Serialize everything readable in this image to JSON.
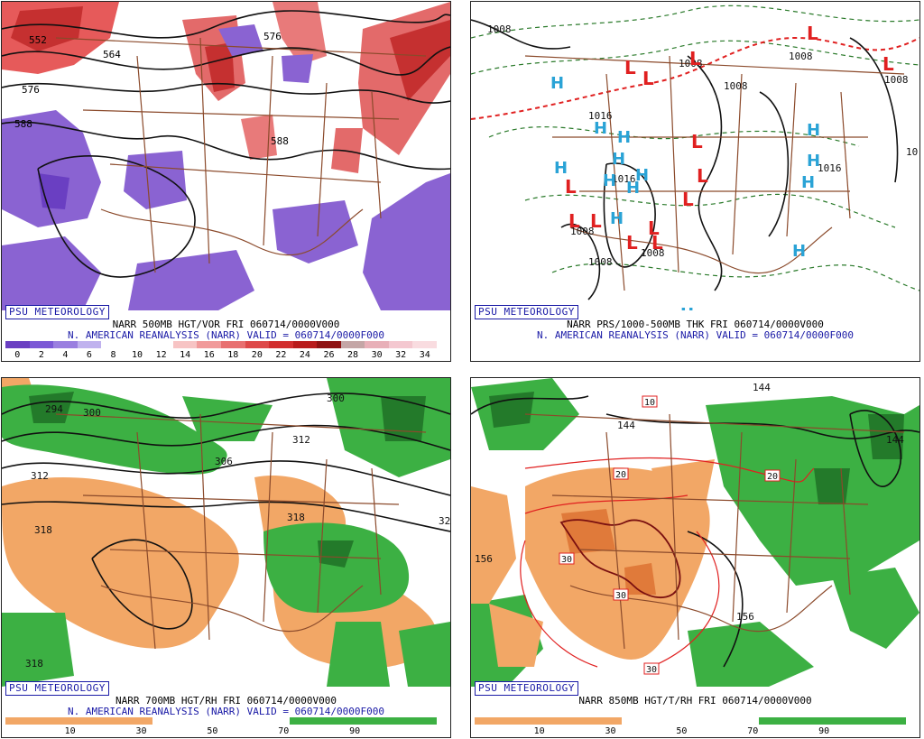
{
  "brand": "PSU METEOROLOGY",
  "panels": [
    {
      "caption": "NARR 500MB HGT/VOR FRI 060714/0000V000",
      "subcaption": "N. AMERICAN REANALYSIS (NARR) VALID = 060714/0000F000",
      "colorbar_ticks": [
        "0",
        "2",
        "4",
        "6",
        "8",
        "10",
        "12",
        "14",
        "16",
        "18",
        "20",
        "22",
        "24",
        "26",
        "28",
        "30",
        "32",
        "34"
      ],
      "colorbar_colors": [
        "#6a3fc2",
        "#7c59d6",
        "#9a7fe0",
        "#c0b2ee",
        "#ffffff",
        "#ffffff",
        "#ffffff",
        "#f7c4c4",
        "#f19a9a",
        "#e87070",
        "#de4949",
        "#d22e2e",
        "#b91c1c",
        "#8f1212",
        "#c4a6a6",
        "#e8b0b8",
        "#f4c8d0",
        "#f9dce0"
      ],
      "contour_labels": [
        "552",
        "564",
        "576",
        "588",
        "588",
        "576"
      ]
    },
    {
      "caption": "NARR PRS/1000-500MB THK FRI 060714/0000V000",
      "subcaption": "N. AMERICAN REANALYSIS (NARR) VALID = 060714/0000F000",
      "contour_labels": [
        "1008",
        "1008",
        "1008",
        "1008",
        "1008",
        "1016",
        "1016",
        "1008",
        "1008",
        "1008",
        "1016",
        "10"
      ],
      "low_marker": "L",
      "high_marker": "H"
    },
    {
      "caption": "NARR 700MB HGT/RH FRI 060714/0000V000",
      "subcaption": "N. AMERICAN REANALYSIS (NARR) VALID = 060714/0000F000",
      "colorbar_ticks": [
        "10",
        "30",
        "50",
        "70",
        "90"
      ],
      "contour_labels": [
        "294",
        "300",
        "300",
        "306",
        "312",
        "312",
        "318",
        "318",
        "318",
        "32"
      ]
    },
    {
      "caption": "NARR 850MB HGT/T/RH FRI 060714/0000V000",
      "subcaption": "",
      "colorbar_ticks": [
        "10",
        "30",
        "50",
        "70",
        "90"
      ],
      "contour_labels": [
        "144",
        "144",
        "144",
        "156",
        "156"
      ],
      "temp_labels": [
        "10",
        "20",
        "20",
        "30",
        "30",
        "30"
      ]
    }
  ],
  "colors": {
    "purple": "#8a63d2",
    "red": "#e04848",
    "orange": "#f2a766",
    "green": "#3cb043",
    "darkgreen": "#237a2a",
    "border": "#8b4a2b",
    "low": "#e02020",
    "high": "#2aa3d6"
  }
}
